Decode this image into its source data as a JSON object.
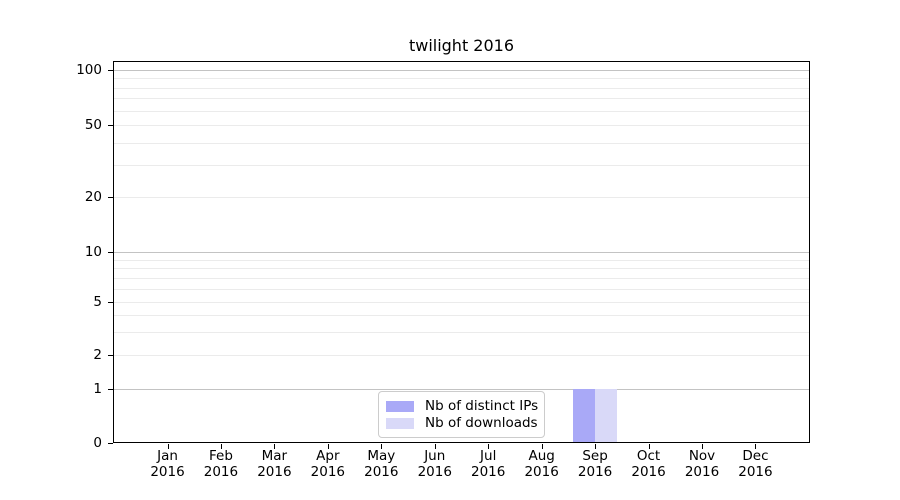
{
  "title": "twilight 2016",
  "legend": {
    "items": [
      {
        "label": "Nb of distinct IPs",
        "color": "#a9a9f7"
      },
      {
        "label": "Nb of downloads",
        "color": "#d9d9f8"
      }
    ]
  },
  "y_axis": {
    "tick_values": [
      0,
      1,
      2,
      5,
      10,
      20,
      50,
      100
    ],
    "tick_labels": [
      "0",
      "1",
      "2",
      "5",
      "10",
      "20",
      "50",
      "100"
    ],
    "major_grid_values": [
      1,
      10,
      100
    ],
    "minor_grid_values": [
      2,
      3,
      4,
      5,
      6,
      7,
      8,
      9,
      20,
      30,
      40,
      50,
      60,
      70,
      80,
      90
    ],
    "scale": "symlog"
  },
  "x_axis": {
    "months": [
      "Jan",
      "Feb",
      "Mar",
      "Apr",
      "May",
      "Jun",
      "Jul",
      "Aug",
      "Sep",
      "Oct",
      "Nov",
      "Dec"
    ],
    "year": "2016"
  },
  "chart_data": {
    "type": "bar",
    "title": "twilight 2016",
    "categories": [
      "Jan 2016",
      "Feb 2016",
      "Mar 2016",
      "Apr 2016",
      "May 2016",
      "Jun 2016",
      "Jul 2016",
      "Aug 2016",
      "Sep 2016",
      "Oct 2016",
      "Nov 2016",
      "Dec 2016"
    ],
    "series": [
      {
        "name": "Nb of distinct IPs",
        "color": "#a9a9f7",
        "values": [
          0,
          0,
          0,
          0,
          0,
          0,
          0,
          0,
          1,
          0,
          0,
          0
        ]
      },
      {
        "name": "Nb of downloads",
        "color": "#d9d9f8",
        "values": [
          0,
          0,
          0,
          0,
          0,
          0,
          0,
          0,
          1,
          0,
          0,
          0
        ]
      }
    ],
    "xlabel": "",
    "ylabel": "",
    "yticks": [
      0,
      1,
      2,
      5,
      10,
      20,
      50,
      100
    ],
    "yscale": "symlog",
    "ylim_bottom": 0,
    "grid": "horizontal major+minor",
    "legend_position": "lower center"
  },
  "colors": {
    "major_grid": "#c3c3c3",
    "minor_grid": "#ebebeb",
    "spine": "#000000",
    "background": "#ffffff",
    "text": "#000000"
  }
}
